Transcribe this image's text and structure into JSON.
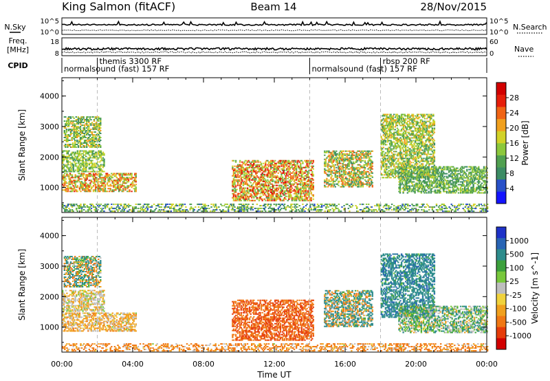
{
  "header": {
    "station": "King Salmon (fitACF)",
    "beam": "Beam 14",
    "date": "28/Nov/2015"
  },
  "left_labels": {
    "nsky": "N.Sky",
    "freq": "Freq.",
    "freq_unit": "[MHz]",
    "cpid": "CPID"
  },
  "right_labels": {
    "nsearch": "N.Search",
    "nave": "Nave"
  },
  "noise_panel": {
    "left_ticks": [
      "10^5",
      "10^0"
    ],
    "right_ticks": [
      "10^5",
      "10^0"
    ]
  },
  "freq_panel": {
    "left_ticks": [
      "18",
      "8"
    ],
    "right_ticks": [
      "60",
      "0"
    ]
  },
  "cpid": {
    "entries": [
      {
        "label": "themis 3300 RF",
        "start_h": 2.0,
        "row": 1
      },
      {
        "label": "normalsound (fast) 157 RF",
        "start_h": 0.0,
        "row": 2
      },
      {
        "label": "normalsound (fast) 157 RF",
        "start_h": 14.0,
        "row": 2
      },
      {
        "label": "rbsp 200 RF",
        "start_h": 18.0,
        "row": 1
      }
    ],
    "boundaries_h": [
      2.0,
      14.0,
      18.0
    ]
  },
  "x_axis": {
    "label": "Time UT",
    "range_h": [
      0,
      24
    ],
    "ticks": [
      "00:00",
      "04:00",
      "08:00",
      "12:00",
      "16:00",
      "20:00",
      "00:00"
    ]
  },
  "power_colorbar": {
    "label": "Power [dB]",
    "ticks": [
      "28",
      "24",
      "20",
      "16",
      "12",
      "8",
      "4"
    ],
    "colors": [
      "#1414ff",
      "#2850c8",
      "#3c8c64",
      "#50a050",
      "#8cc83c",
      "#d2d228",
      "#f0a01e",
      "#f06414",
      "#e61e0a",
      "#d20000"
    ]
  },
  "velocity_colorbar": {
    "label": "Velocity [m s^-1]",
    "ticks": [
      "1000",
      "500",
      "100",
      "25",
      "-25",
      "-100",
      "-500",
      "-1000"
    ],
    "colors": [
      "#1e32c8",
      "#2864b4",
      "#2d8c8c",
      "#3ca03c",
      "#78c83c",
      "#bebebe",
      "#f0d23c",
      "#f0a01e",
      "#f07814",
      "#e63c0a",
      "#d20000"
    ]
  },
  "chart_data": [
    {
      "type": "heatmap",
      "title": "",
      "xlabel": "Time UT",
      "ylabel": "Slant Range [km]",
      "xlim_h": [
        0,
        24
      ],
      "ylim_km": [
        180,
        4600
      ],
      "yticks": [
        1000,
        2000,
        3000,
        4000
      ],
      "value_label": "Power [dB]",
      "value_range": [
        0,
        30
      ],
      "regions": [
        {
          "t": [
            0.0,
            4.2
          ],
          "r": [
            850,
            1450
          ],
          "v": [
            10,
            26
          ]
        },
        {
          "t": [
            0.0,
            2.4
          ],
          "r": [
            1500,
            2200
          ],
          "v": [
            8,
            18
          ]
        },
        {
          "t": [
            0.1,
            2.2
          ],
          "r": [
            2300,
            3300
          ],
          "v": [
            6,
            20
          ]
        },
        {
          "t": [
            9.6,
            14.2
          ],
          "r": [
            550,
            1900
          ],
          "v": [
            10,
            28
          ]
        },
        {
          "t": [
            14.8,
            17.5
          ],
          "r": [
            1000,
            2200
          ],
          "v": [
            6,
            24
          ]
        },
        {
          "t": [
            18.0,
            21.0
          ],
          "r": [
            1300,
            3400
          ],
          "v": [
            8,
            20
          ]
        },
        {
          "t": [
            19.0,
            24.0
          ],
          "r": [
            800,
            1700
          ],
          "v": [
            6,
            16
          ]
        },
        {
          "t": [
            0.0,
            24.0
          ],
          "r": [
            200,
            450
          ],
          "v": [
            4,
            18
          ]
        }
      ]
    },
    {
      "type": "heatmap",
      "title": "",
      "xlabel": "Time UT",
      "ylabel": "Slant Range [km]",
      "xlim_h": [
        0,
        24
      ],
      "ylim_km": [
        180,
        4600
      ],
      "yticks": [
        1000,
        2000,
        3000,
        4000
      ],
      "value_label": "Velocity [m s^-1]",
      "value_range": [
        -1000,
        1000
      ],
      "regions": [
        {
          "t": [
            0.0,
            4.2
          ],
          "r": [
            850,
            1450
          ],
          "v": [
            -120,
            30
          ]
        },
        {
          "t": [
            0.0,
            2.4
          ],
          "r": [
            1500,
            2200
          ],
          "v": [
            -60,
            40
          ]
        },
        {
          "t": [
            0.1,
            2.2
          ],
          "r": [
            2300,
            3300
          ],
          "v": [
            -200,
            300
          ]
        },
        {
          "t": [
            9.6,
            14.2
          ],
          "r": [
            550,
            1900
          ],
          "v": [
            -800,
            -150
          ]
        },
        {
          "t": [
            14.8,
            17.5
          ],
          "r": [
            1000,
            2200
          ],
          "v": [
            -200,
            400
          ]
        },
        {
          "t": [
            18.0,
            21.0
          ],
          "r": [
            1300,
            3400
          ],
          "v": [
            50,
            600
          ]
        },
        {
          "t": [
            19.0,
            24.0
          ],
          "r": [
            800,
            1700
          ],
          "v": [
            -40,
            150
          ]
        },
        {
          "t": [
            0.0,
            24.0
          ],
          "r": [
            200,
            450
          ],
          "v": [
            -300,
            30
          ]
        }
      ]
    }
  ]
}
